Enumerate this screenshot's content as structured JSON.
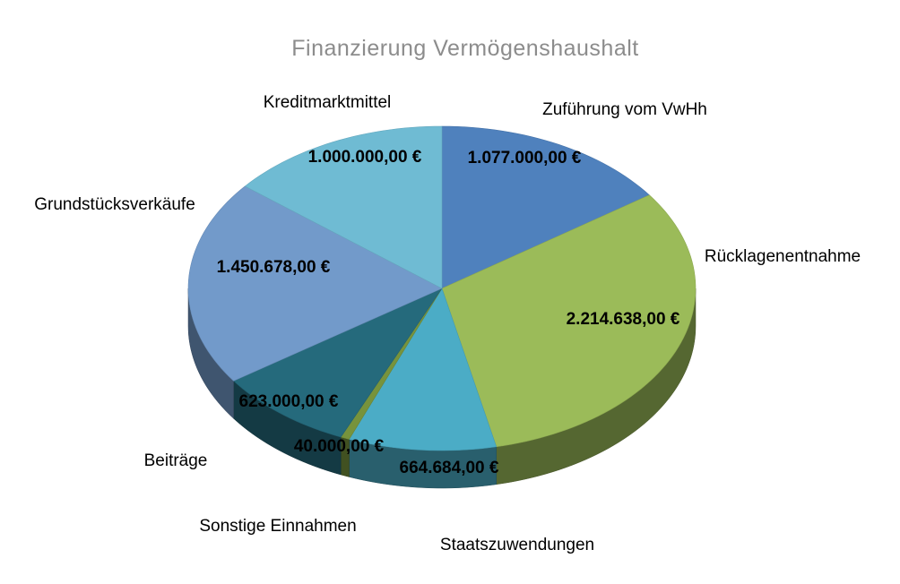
{
  "chart_data": {
    "type": "pie",
    "title": "Finanzierung Vermögenshaushalt",
    "slices": [
      {
        "name": "Zuführung vom VwHh",
        "value": 1077000.0,
        "value_label": "1.077.000,00 €",
        "color": "#4f81bd"
      },
      {
        "name": "Rücklagenentnahme",
        "value": 2214638.0,
        "value_label": "2.214.638,00 €",
        "color": "#9bbb59"
      },
      {
        "name": "Staatszuwendungen",
        "value": 664684.0,
        "value_label": "664.684,00 €",
        "color": "#4bacc6"
      },
      {
        "name": "Sonstige Einnahmen",
        "value": 40000.0,
        "value_label": "40.000,00 €",
        "color": "#77933c"
      },
      {
        "name": "Beiträge",
        "value": 623000.0,
        "value_label": "623.000,00 €",
        "color": "#256a7c"
      },
      {
        "name": "Grundstücksverkäufe",
        "value": 1450678.0,
        "value_label": "1.450.678,00 €",
        "color": "#729aca"
      },
      {
        "name": "Kreditmarktmittel",
        "value": 1000000.0,
        "value_label": "1.000.000,00 €",
        "color": "#6fbbd3"
      }
    ],
    "start": "top",
    "direction": "clockwise",
    "style": "3d",
    "legend": "none"
  }
}
